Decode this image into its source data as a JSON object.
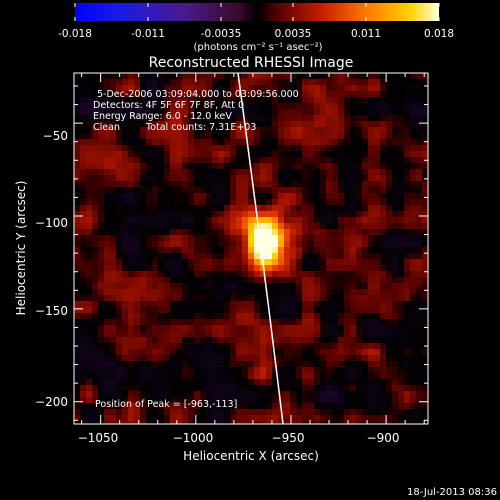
{
  "colorbar": {
    "tick_labels": [
      "-0.018",
      "-0.011",
      "-0.0035",
      "0.0035",
      "0.011",
      "0.018"
    ],
    "units": "(photons cm⁻² s⁻¹ asec⁻²)",
    "range": [
      -0.018,
      0.018
    ],
    "colormap": "blue-purple-red-orange-yellow-white (RHESSI color table)"
  },
  "title": "Reconstructed RHESSI Image",
  "info": {
    "time_range": "5-Dec-2006 03:09:04.000 to 03:09:56.000",
    "detectors": "Detectors: 4F 5F 6F 7F 8F, Att 0",
    "energy_range": "Energy Range: 6.0 - 12.0 keV",
    "algorithm": "Clean",
    "total_counts": "Total counts: 7.31E+03",
    "peak_position": "Position of Peak = [-963,-113]"
  },
  "axes": {
    "xlabel": "Heliocentric X (arcsec)",
    "ylabel": "Heliocentric Y (arcsec)",
    "xlim": [
      -1064,
      -878
    ],
    "ylim": [
      -212,
      -23
    ],
    "x_ticks": [
      {
        "value": -1050,
        "label": "−1050"
      },
      {
        "value": -1000,
        "label": "−1000"
      },
      {
        "value": -950,
        "label": "−950"
      },
      {
        "value": -900,
        "label": "−900"
      }
    ],
    "y_ticks": [
      {
        "value": -50,
        "label": "−50"
      },
      {
        "value": -100,
        "label": "−100"
      },
      {
        "value": -150,
        "label": "−150"
      },
      {
        "value": -200,
        "label": "−200"
      }
    ]
  },
  "image": {
    "peak_x": -963,
    "peak_y": -113,
    "limb_line_color": "#ffffff"
  },
  "footer": {
    "timestamp": "18-Jul-2013 08:36"
  }
}
